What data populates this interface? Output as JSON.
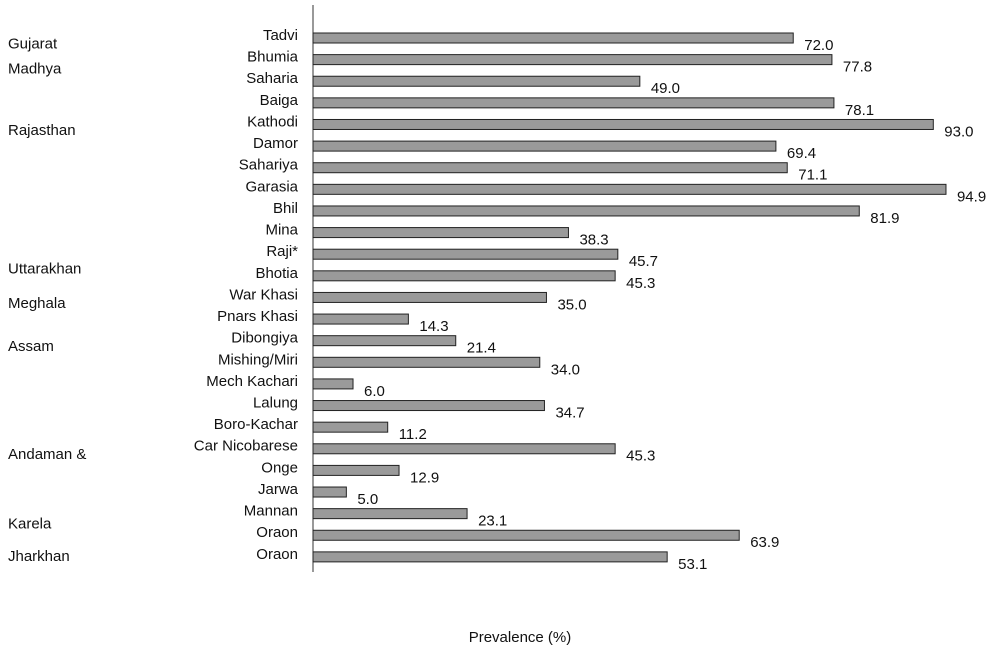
{
  "chart_data": {
    "type": "hbar",
    "x_label": "Prevalence (%)",
    "categories": [
      "Tadvi",
      "Bhumia",
      "Saharia",
      "Baiga",
      "Kathodi",
      "Damor",
      "Sahariya",
      "Garasia",
      "Bhil",
      "Mina",
      "Raji*",
      "Bhotia",
      "War Khasi",
      "Pnars Khasi",
      "Dibongiya",
      "Mishing/Miri",
      "Mech Kachari",
      "Lalung",
      "Boro-Kachar",
      "Car Nicobarese",
      "Onge",
      "Jarwa",
      "Mannan",
      "Oraon",
      "Oraon"
    ],
    "values": [
      72.0,
      77.8,
      49.0,
      78.1,
      93.0,
      69.4,
      71.1,
      94.9,
      81.9,
      38.3,
      45.7,
      45.3,
      35.0,
      14.3,
      21.4,
      34.0,
      6.0,
      34.7,
      11.2,
      45.3,
      12.9,
      5.0,
      23.1,
      63.9,
      53.1
    ],
    "value_labels": [
      "72.0",
      "77.8",
      "49.0",
      "78.1",
      "93.0",
      "69.4",
      "71.1",
      "94.9",
      "81.9",
      "38.3",
      "45.7",
      "45.3",
      "35.0",
      "14.3",
      "21.4",
      "34.0",
      "6.0",
      "34.7",
      "11.2",
      "45.3",
      "12.9",
      "5.0",
      "23.1",
      "63.9",
      "53.1"
    ],
    "groups": [
      "Gujarat",
      "Madhya",
      "Rajasthan",
      "Uttarakhan",
      "Meghala",
      "Assam",
      "Andaman &",
      "Karela",
      "Jharkhan"
    ],
    "color": "#9a9a9a",
    "xlim": [
      0,
      100
    ]
  }
}
